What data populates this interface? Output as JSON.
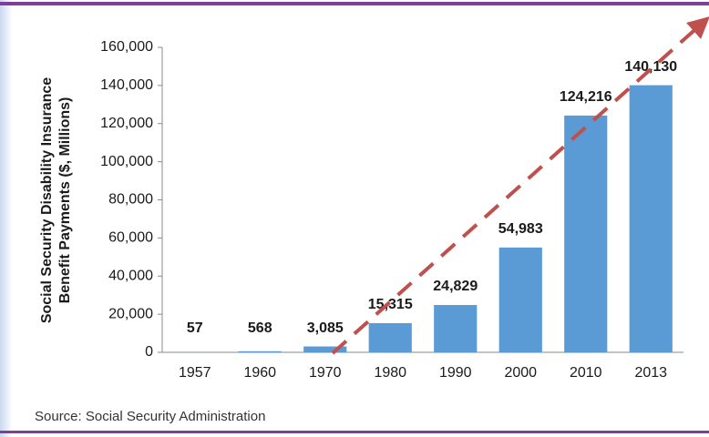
{
  "chart_data": {
    "type": "bar",
    "y_label_lines": [
      "Social Security Disability Insurance",
      "Benefit Payments ($, Millions)"
    ],
    "source": "Source: Social Security Administration",
    "categories": [
      "1957",
      "1960",
      "1970",
      "1980",
      "1990",
      "2000",
      "2010",
      "2013"
    ],
    "values": [
      57,
      568,
      3085,
      15315,
      24829,
      54983,
      124216,
      140130
    ],
    "value_labels": [
      "57",
      "568",
      "3,085",
      "15,315",
      "24,829",
      "54,983",
      "124,216",
      "140,130"
    ],
    "color": "#5b9bd5",
    "ylim": [
      0,
      160000
    ],
    "yticks": [
      0,
      {
        "value": 20000,
        "label": "20,000"
      },
      {
        "value": 40000,
        "label": "40,000"
      },
      {
        "value": 60000,
        "label": "60,000"
      },
      {
        "value": 80000,
        "label": "80,000"
      },
      {
        "value": 100000,
        "label": "100,000"
      },
      {
        "value": 120000,
        "label": "120,000"
      },
      {
        "value": 140000,
        "label": "140,000"
      },
      {
        "value": 160000,
        "label": "160,000"
      }
    ],
    "grid": false
  }
}
